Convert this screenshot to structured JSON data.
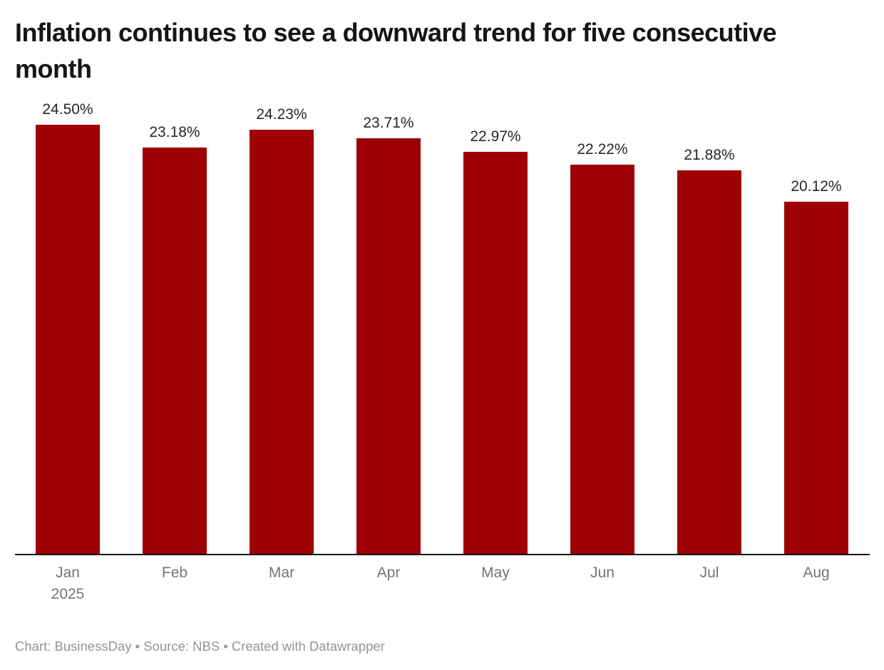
{
  "header": {
    "title": "Inflation continues to see a downward trend for five consecutive month"
  },
  "chart_data": {
    "type": "bar",
    "title": "Inflation continues to see a downward trend for five consecutive month",
    "categories": [
      "Jan",
      "Feb",
      "Mar",
      "Apr",
      "May",
      "Jun",
      "Jul",
      "Aug"
    ],
    "x_sublabels": [
      "2025",
      "",
      "",
      "",
      "",
      "",
      "",
      ""
    ],
    "values": [
      24.5,
      23.18,
      24.23,
      23.71,
      22.97,
      22.22,
      21.88,
      20.12
    ],
    "value_labels": [
      "24.50%",
      "23.18%",
      "24.23%",
      "23.71%",
      "22.97%",
      "22.22%",
      "21.88%",
      "20.12%"
    ],
    "unit": "%",
    "xlabel": "",
    "ylabel": "",
    "ylim": [
      0,
      24.5
    ],
    "grid": false,
    "legend": "none",
    "bar_color": "#9e0105",
    "axis_line_color": "#141414",
    "tick_label_color": "#757575",
    "value_label_color": "#262626"
  },
  "footer": {
    "credit": "Chart: BusinessDay • Source: NBS • Created with Datawrapper"
  }
}
